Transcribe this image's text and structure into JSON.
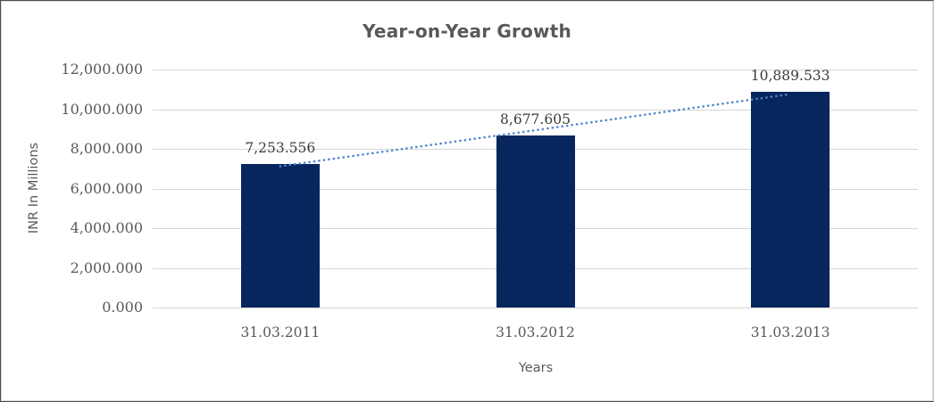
{
  "chart_data": {
    "type": "bar",
    "title": "Year-on-Year Growth",
    "xlabel": "Years",
    "ylabel": "INR In Millions",
    "categories": [
      "31.03.2011",
      "31.03.2012",
      "31.03.2013"
    ],
    "values": [
      7253.556,
      8677.605,
      10889.533
    ],
    "data_labels": [
      "7,253.556",
      "8,677.605",
      "10,889.533"
    ],
    "ylim": [
      0,
      12000
    ],
    "ytick_interval": 2000,
    "ytick_labels": [
      "0.000",
      "2,000.000",
      "4,000.000",
      "6,000.000",
      "8,000.000",
      "10,000.000",
      "12,000.000"
    ],
    "grid": true,
    "legend": "none",
    "trendline": {
      "type": "linear",
      "style": "dotted"
    },
    "colors": {
      "bar": "#08265e",
      "trendline": "#4e86ca",
      "gridline": "#d6d6d6",
      "title_text": "#595959",
      "axis_text": "#595959",
      "data_label_text": "#3b3b3b"
    }
  }
}
